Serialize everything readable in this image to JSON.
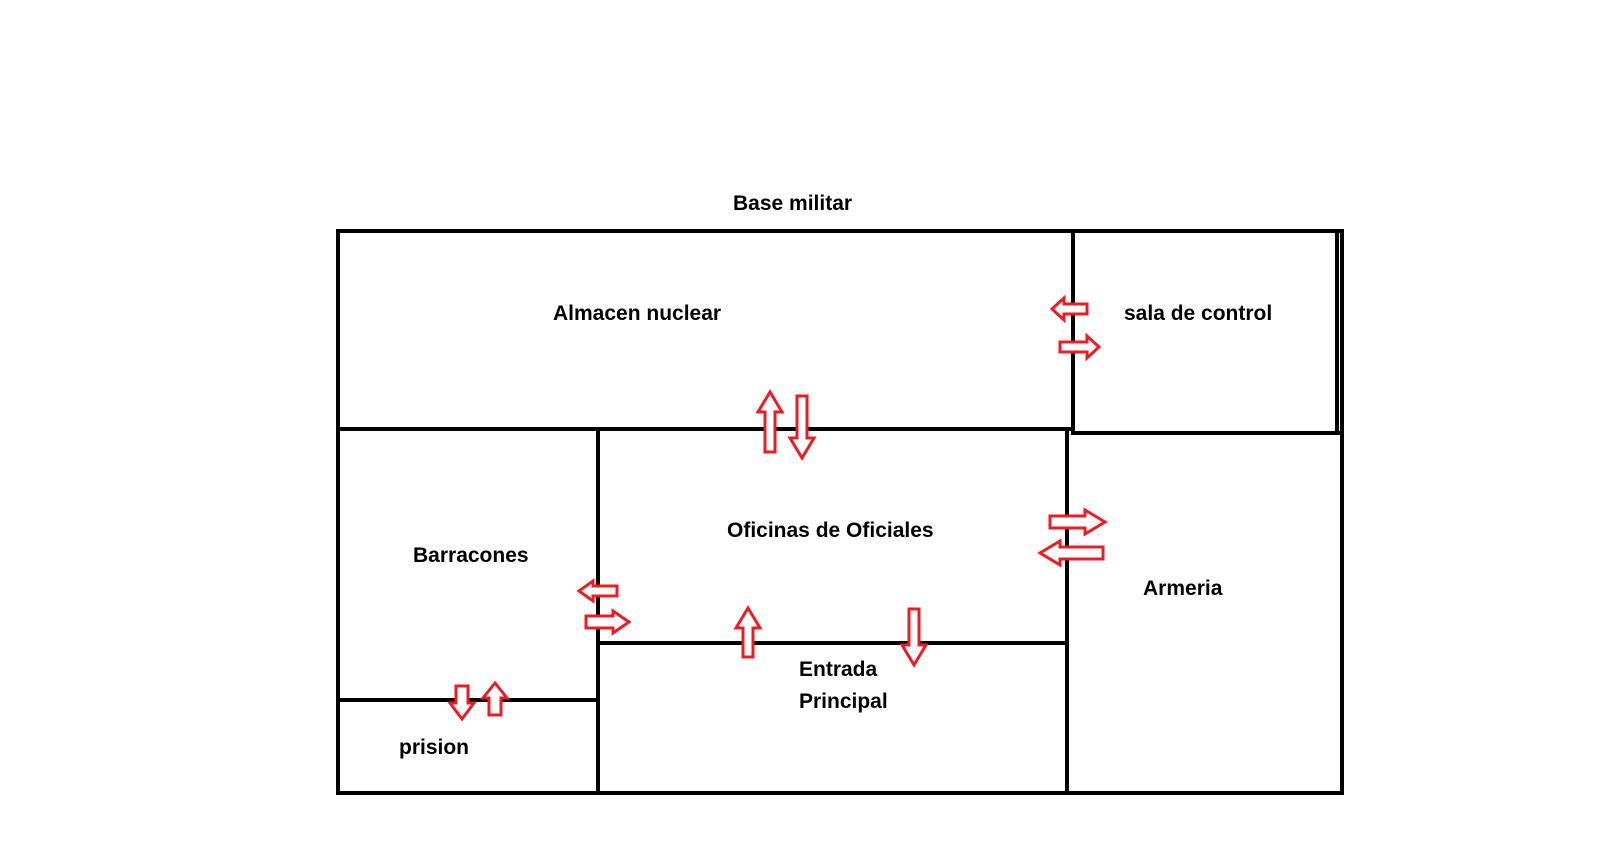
{
  "diagram": {
    "title": "Base militar",
    "colors": {
      "wall": "#000000",
      "arrow": "#ed1c24",
      "background": "#ffffff"
    },
    "rooms": [
      {
        "id": "almacen",
        "label": "Almacen nuclear"
      },
      {
        "id": "sala",
        "label": "sala de control"
      },
      {
        "id": "barracones",
        "label": "Barracones"
      },
      {
        "id": "oficinas",
        "label": "Oficinas de Oficiales"
      },
      {
        "id": "armeria",
        "label": "Armeria"
      },
      {
        "id": "entrada",
        "label_lines": [
          "Entrada",
          "Principal"
        ]
      },
      {
        "id": "prision",
        "label": "prision"
      }
    ],
    "connections": [
      {
        "between": [
          "Almacen nuclear",
          "sala de control"
        ],
        "icon": "double-arrow-horizontal"
      },
      {
        "between": [
          "Almacen nuclear",
          "Oficinas de Oficiales"
        ],
        "icon": "double-arrow-vertical"
      },
      {
        "between": [
          "Oficinas de Oficiales",
          "Armeria"
        ],
        "icon": "double-arrow-horizontal"
      },
      {
        "between": [
          "Barracones",
          "Oficinas de Oficiales"
        ],
        "icon": "double-arrow-horizontal"
      },
      {
        "between": [
          "Oficinas de Oficiales",
          "Entrada Principal"
        ],
        "icon": "double-arrow-vertical"
      },
      {
        "between": [
          "Barracones",
          "prision"
        ],
        "icon": "double-arrow-vertical"
      }
    ]
  }
}
